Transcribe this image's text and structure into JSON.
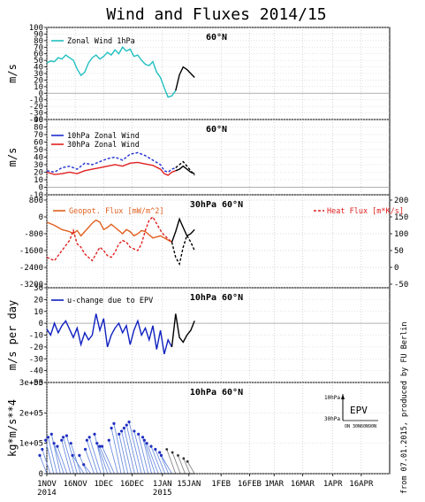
{
  "title": "Wind and Fluxes 2014/15",
  "credit": "from 07.01.2015, produced by FU Berlin",
  "x_axis": {
    "tick_labels": [
      "1NOV",
      "16NOV",
      "1DEC",
      "16DEC",
      "1JAN",
      "15JAN",
      "1FEB",
      "16FEB",
      "1MAR",
      "16MAR",
      "1APR",
      "16APR"
    ],
    "year_labels": [
      {
        "text": "2014",
        "at": "1NOV"
      },
      {
        "text": "2015",
        "at": "1JAN"
      }
    ],
    "range_days": [
      0,
      181
    ]
  },
  "colors": {
    "zonal_1hpa": "#20c0c0",
    "zonal_10hpa": "#2030d0",
    "zonal_30hpa": "#e02020",
    "geopot_flux": "#e06020",
    "heat_flux": "#e02020",
    "epv": "#1020c0",
    "forecast": "#000000",
    "vector_obs": "#7090e0",
    "vector_fc": "#888888",
    "zero_line": "#999999"
  },
  "chart_data": [
    {
      "type": "line",
      "panel_title": "60°N",
      "ylabel": "m/s",
      "ylim": [
        -40,
        100
      ],
      "yticks": [
        -40,
        -30,
        -20,
        -10,
        0,
        10,
        20,
        30,
        40,
        50,
        60,
        70,
        80,
        90,
        100
      ],
      "legend": [
        "Zonal Wind 1hPa"
      ],
      "series": [
        {
          "name": "Zonal Wind 1hPa",
          "style": "solid",
          "x": [
            0,
            2,
            4,
            6,
            8,
            10,
            12,
            14,
            16,
            18,
            20,
            22,
            24,
            26,
            28,
            30,
            32,
            34,
            36,
            38,
            40,
            42,
            44,
            46,
            48,
            50,
            52,
            54,
            56,
            58,
            60,
            62,
            64,
            66,
            68
          ],
          "y": [
            46,
            49,
            48,
            54,
            52,
            58,
            54,
            50,
            37,
            27,
            32,
            46,
            54,
            58,
            52,
            56,
            62,
            58,
            66,
            60,
            70,
            64,
            67,
            56,
            58,
            50,
            44,
            42,
            48,
            32,
            24,
            8,
            -6,
            -4,
            4
          ]
        },
        {
          "name": "forecast",
          "style": "solid",
          "x": [
            68,
            70,
            72,
            74,
            76,
            78
          ],
          "y": [
            4,
            28,
            40,
            36,
            30,
            24
          ]
        }
      ]
    },
    {
      "type": "line",
      "panel_title": "60°N",
      "ylabel": "m/s",
      "ylim": [
        -10,
        90
      ],
      "yticks": [
        -10,
        0,
        10,
        20,
        30,
        40,
        50,
        60,
        70,
        80,
        90
      ],
      "legend": [
        "10hPa Zonal Wind",
        "30hPa Zonal Wind"
      ],
      "series": [
        {
          "name": "10hPa Zonal Wind",
          "style": "dashed",
          "x": [
            0,
            4,
            8,
            12,
            16,
            20,
            24,
            28,
            32,
            36,
            40,
            44,
            48,
            52,
            56,
            60,
            62,
            64,
            66,
            68
          ],
          "y": [
            22,
            20,
            26,
            28,
            24,
            32,
            30,
            34,
            38,
            40,
            36,
            44,
            46,
            42,
            36,
            30,
            22,
            20,
            24,
            26
          ]
        },
        {
          "name": "30hPa Zonal Wind",
          "style": "solid",
          "x": [
            0,
            4,
            8,
            12,
            16,
            20,
            24,
            28,
            32,
            36,
            40,
            44,
            48,
            52,
            56,
            60,
            62,
            64,
            66,
            68
          ],
          "y": [
            20,
            17,
            18,
            20,
            18,
            22,
            24,
            26,
            28,
            30,
            28,
            32,
            33,
            31,
            29,
            24,
            18,
            16,
            20,
            22
          ]
        },
        {
          "name": "forecast",
          "style": "dashed",
          "x": [
            68,
            70,
            72,
            74,
            76,
            78
          ],
          "y": [
            26,
            30,
            34,
            28,
            22,
            16
          ]
        },
        {
          "name": "forecast",
          "style": "solid",
          "x": [
            68,
            70,
            72,
            74,
            76,
            78
          ],
          "y": [
            22,
            24,
            28,
            24,
            20,
            18
          ]
        }
      ]
    },
    {
      "type": "line",
      "panel_title": "30hPa 60°N",
      "ylim_left": [
        -3200,
        800
      ],
      "yticks_left": [
        -3200,
        -2400,
        -1600,
        -800,
        0,
        800
      ],
      "ylim_right": [
        -50,
        200
      ],
      "yticks_right": [
        -50,
        0,
        50,
        100,
        150,
        200
      ],
      "legend": [
        "Geopot. Flux [mW/m^2]",
        "Heat Flux [m*K/s]"
      ],
      "series": [
        {
          "name": "Geopot. Flux [mW/m^2]",
          "axis": "left",
          "style": "solid",
          "x": [
            0,
            4,
            8,
            12,
            14,
            16,
            18,
            20,
            22,
            24,
            26,
            28,
            30,
            32,
            34,
            36,
            38,
            40,
            42,
            44,
            46,
            48,
            50,
            52,
            54,
            56,
            58,
            60,
            62,
            64,
            66
          ],
          "y": [
            -250,
            -400,
            -600,
            -700,
            -800,
            -650,
            -900,
            -700,
            -500,
            -300,
            -150,
            -250,
            -600,
            -500,
            -350,
            -500,
            -650,
            -800,
            -600,
            -700,
            -900,
            -800,
            -650,
            -700,
            -850,
            -1000,
            -950,
            -900,
            -1000,
            -1100,
            -1200
          ]
        },
        {
          "name": "Heat Flux [m*K/s]",
          "axis": "right",
          "style": "dashed",
          "x": [
            0,
            4,
            8,
            12,
            14,
            16,
            18,
            20,
            22,
            24,
            26,
            28,
            30,
            32,
            34,
            36,
            38,
            40,
            42,
            44,
            46,
            48,
            50,
            52,
            54,
            56,
            58,
            60,
            62,
            64,
            66
          ],
          "y": [
            30,
            20,
            50,
            80,
            110,
            70,
            60,
            40,
            30,
            20,
            40,
            60,
            50,
            35,
            30,
            45,
            70,
            80,
            75,
            60,
            55,
            50,
            70,
            110,
            140,
            150,
            130,
            110,
            95,
            85,
            75
          ]
        },
        {
          "name": "forecast",
          "axis": "left",
          "style": "solid",
          "x": [
            66,
            68,
            70,
            72,
            74,
            76,
            78
          ],
          "y": [
            -1200,
            -700,
            -100,
            -500,
            -900,
            -800,
            -600
          ]
        },
        {
          "name": "forecast",
          "axis": "right",
          "style": "dashed",
          "x": [
            66,
            68,
            70,
            72,
            74,
            76,
            78
          ],
          "y": [
            75,
            30,
            10,
            60,
            95,
            75,
            50
          ]
        }
      ]
    },
    {
      "type": "line",
      "panel_title": "10hPa 60°N",
      "ylabel": "m/s per day",
      "ylim": [
        -50,
        30
      ],
      "yticks": [
        -50,
        -40,
        -30,
        -20,
        -10,
        0,
        10,
        20,
        30
      ],
      "legend": [
        "u-change due to EPV"
      ],
      "series": [
        {
          "name": "u-change due to EPV",
          "style": "solid",
          "x": [
            0,
            2,
            4,
            6,
            8,
            10,
            12,
            14,
            16,
            18,
            20,
            22,
            24,
            26,
            28,
            30,
            32,
            34,
            36,
            38,
            40,
            42,
            44,
            46,
            48,
            50,
            52,
            54,
            56,
            58,
            60,
            62,
            64,
            66
          ],
          "y": [
            -5,
            -10,
            0,
            -8,
            -2,
            2,
            -5,
            -12,
            -4,
            -18,
            -8,
            -14,
            -10,
            8,
            -6,
            4,
            -20,
            -10,
            -4,
            0,
            -8,
            -2,
            -18,
            -6,
            2,
            -10,
            -4,
            -14,
            -2,
            -22,
            -6,
            -26,
            -14,
            -20
          ]
        },
        {
          "name": "forecast",
          "style": "solid",
          "x": [
            66,
            68,
            70,
            72,
            74,
            76,
            78
          ],
          "y": [
            -20,
            8,
            -12,
            -16,
            -10,
            -6,
            2
          ]
        }
      ]
    },
    {
      "type": "vector",
      "panel_title": "10hPa 60°N",
      "ylabel": "kg*m/s**4",
      "ylim": [
        0,
        300000
      ],
      "yticks_labels": [
        "0",
        "1e+05",
        "2e+05",
        "3e+05"
      ],
      "yticks": [
        0,
        100000,
        200000,
        300000
      ],
      "legend_inset": {
        "label": "EPV",
        "y_labels": [
          "10hPa",
          "30hPa"
        ],
        "x_label": "ON 30N60N90N"
      },
      "vectors_obs_dx": [
        8,
        9,
        9,
        10,
        10,
        11,
        11,
        10,
        12,
        12,
        11,
        13,
        9,
        8,
        10,
        12,
        13,
        11,
        12,
        13,
        14,
        10,
        11,
        12,
        10,
        11,
        12,
        13,
        14,
        12,
        11,
        10,
        12,
        13,
        12,
        11,
        10,
        12
      ],
      "vectors_obs_end": [
        60000,
        80000,
        110000,
        120000,
        130000,
        100000,
        90000,
        110000,
        120000,
        125000,
        100000,
        60000,
        60000,
        30000,
        80000,
        110000,
        120000,
        130000,
        100000,
        90000,
        90000,
        110000,
        150000,
        165000,
        130000,
        140000,
        150000,
        160000,
        170000,
        140000,
        130000,
        120000,
        110000,
        100000,
        90000,
        80000,
        70000,
        60000
      ],
      "vectors_fc_dx": [
        10,
        9,
        8,
        7,
        8
      ],
      "vectors_fc_end": [
        80000,
        70000,
        60000,
        50000,
        40000
      ]
    }
  ]
}
